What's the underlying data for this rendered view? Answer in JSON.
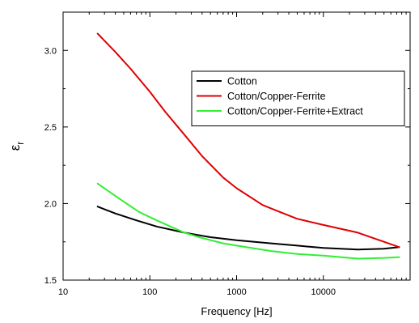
{
  "chart_data": {
    "type": "line",
    "title": "",
    "xlabel": "Frequency [Hz]",
    "ylabel_main": "ε",
    "ylabel_sub": "r",
    "x_scale": "log",
    "xlim": [
      10,
      100000
    ],
    "ylim": [
      1.5,
      3.25
    ],
    "x_ticks": [
      10,
      100,
      1000,
      10000
    ],
    "x_tick_labels": [
      "10",
      "100",
      "1000",
      "10000"
    ],
    "y_ticks": [
      1.5,
      2.0,
      2.5,
      3.0
    ],
    "y_tick_labels": [
      "1.5",
      "2.0",
      "2.5",
      "3.0"
    ],
    "grid": false,
    "legend_position": "top-right",
    "series": [
      {
        "name": "Cotton",
        "color": "#000000",
        "x": [
          25,
          40,
          70,
          120,
          250,
          500,
          1000,
          2500,
          5000,
          10000,
          25000,
          50000,
          75000
        ],
        "y": [
          1.98,
          1.935,
          1.89,
          1.85,
          1.81,
          1.78,
          1.76,
          1.74,
          1.725,
          1.71,
          1.7,
          1.705,
          1.715
        ]
      },
      {
        "name": "Cotton/Copper-Ferrite",
        "color": "#e00000",
        "x": [
          25,
          40,
          60,
          100,
          150,
          250,
          400,
          700,
          1000,
          2000,
          3000,
          5000,
          10000,
          25000,
          50000,
          75000
        ],
        "y": [
          3.11,
          2.99,
          2.88,
          2.73,
          2.6,
          2.45,
          2.31,
          2.17,
          2.1,
          1.99,
          1.95,
          1.9,
          1.86,
          1.81,
          1.75,
          1.715
        ]
      },
      {
        "name": "Cotton/Copper-Ferrite+Extract",
        "color": "#33ee33",
        "x": [
          25,
          45,
          75,
          120,
          250,
          400,
          700,
          1000,
          2500,
          5000,
          10000,
          25000,
          50000,
          75000
        ],
        "y": [
          2.13,
          2.03,
          1.945,
          1.89,
          1.81,
          1.775,
          1.74,
          1.725,
          1.69,
          1.67,
          1.66,
          1.64,
          1.645,
          1.65
        ]
      }
    ]
  }
}
